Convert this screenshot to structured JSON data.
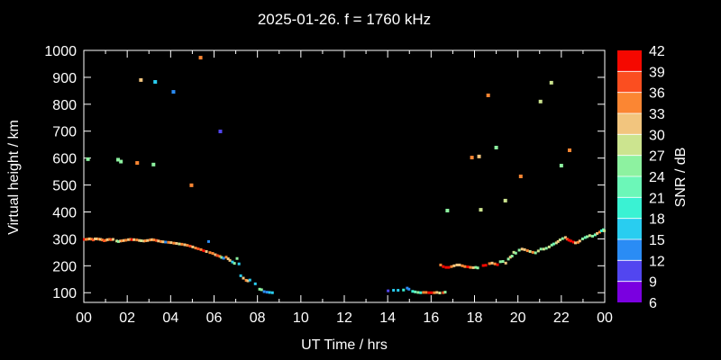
{
  "chart_data": {
    "type": "scatter",
    "title": "2025-01-26. f = 1760 kHz",
    "xlabel": "UT Time / hrs",
    "ylabel": "Virtual height / km",
    "xlim": [
      0,
      24
    ],
    "ylim": [
      64,
      1000
    ],
    "grid": false,
    "x_major_ticks": [
      0,
      2,
      4,
      6,
      8,
      10,
      12,
      14,
      16,
      18,
      20,
      22,
      24
    ],
    "x_tick_labels": [
      "00",
      "02",
      "04",
      "06",
      "08",
      "10",
      "12",
      "14",
      "16",
      "18",
      "20",
      "22",
      "00"
    ],
    "x_minor_ticks": [
      1,
      3,
      5,
      7,
      9,
      11,
      13,
      15,
      17,
      19,
      21,
      23
    ],
    "y_major_ticks": [
      100,
      200,
      300,
      400,
      500,
      600,
      700,
      800,
      900,
      1000
    ],
    "colorbar": {
      "label": "SNR / dB",
      "min": 6,
      "max": 42,
      "step": 3,
      "tick_labels": [
        "42",
        "39",
        "36",
        "33",
        "30",
        "27",
        "24",
        "21",
        "18",
        "15",
        "12",
        "9",
        "6"
      ],
      "colors_bottom_to_top": [
        "#7a00e0",
        "#5246f0",
        "#2a8cf5",
        "#29cdf0",
        "#3af2d3",
        "#6cf7b8",
        "#8df2a0",
        "#cce48f",
        "#f2c57e",
        "#fb8633",
        "#fb4e20",
        "#f50800"
      ]
    },
    "series": [
      {
        "name": "echo-trace",
        "marker_size": 3,
        "points_t_h_snr": [
          [
            0.02,
            298,
            40
          ],
          [
            0.1,
            298,
            34
          ],
          [
            0.19,
            299,
            34
          ],
          [
            0.27,
            300,
            31
          ],
          [
            0.35,
            299,
            34
          ],
          [
            0.44,
            296,
            37
          ],
          [
            0.52,
            300,
            31
          ],
          [
            0.6,
            300,
            31
          ],
          [
            0.69,
            299,
            34
          ],
          [
            0.77,
            298,
            31
          ],
          [
            0.85,
            296,
            34
          ],
          [
            0.94,
            293,
            37
          ],
          [
            1.02,
            295,
            34
          ],
          [
            1.1,
            297,
            31
          ],
          [
            1.19,
            298,
            34
          ],
          [
            1.27,
            297,
            37
          ],
          [
            1.35,
            298,
            31
          ],
          [
            1.52,
            292,
            28
          ],
          [
            1.6,
            290,
            25
          ],
          [
            1.69,
            292,
            31
          ],
          [
            1.77,
            293,
            34
          ],
          [
            1.85,
            294,
            31
          ],
          [
            1.94,
            295,
            34
          ],
          [
            2.06,
            297,
            31
          ],
          [
            2.15,
            298,
            34
          ],
          [
            2.23,
            297,
            40
          ],
          [
            2.31,
            297,
            31
          ],
          [
            2.44,
            296,
            34
          ],
          [
            2.56,
            294,
            31
          ],
          [
            2.65,
            293,
            28
          ],
          [
            2.77,
            292,
            31
          ],
          [
            2.85,
            293,
            34
          ],
          [
            2.94,
            294,
            31
          ],
          [
            3.06,
            296,
            34
          ],
          [
            3.15,
            297,
            31
          ],
          [
            3.23,
            296,
            34
          ],
          [
            3.35,
            294,
            37
          ],
          [
            3.44,
            292,
            31
          ],
          [
            3.56,
            290,
            34
          ],
          [
            3.65,
            289,
            31
          ],
          [
            3.77,
            288,
            13
          ],
          [
            3.9,
            287,
            34
          ],
          [
            4.02,
            286,
            31
          ],
          [
            4.15,
            284,
            34
          ],
          [
            4.27,
            283,
            31
          ],
          [
            4.4,
            281,
            28
          ],
          [
            4.52,
            280,
            34
          ],
          [
            4.65,
            278,
            31
          ],
          [
            4.77,
            276,
            34
          ],
          [
            4.9,
            273,
            37
          ],
          [
            5.02,
            270,
            31
          ],
          [
            5.15,
            266,
            34
          ],
          [
            5.27,
            263,
            37
          ],
          [
            5.4,
            260,
            34
          ],
          [
            5.52,
            256,
            40
          ],
          [
            5.65,
            253,
            31
          ],
          [
            5.75,
            290,
            13
          ],
          [
            5.81,
            249,
            34
          ],
          [
            5.94,
            246,
            34
          ],
          [
            6.06,
            241,
            31
          ],
          [
            6.15,
            238,
            37
          ],
          [
            6.27,
            235,
            34
          ],
          [
            6.35,
            231,
            25
          ],
          [
            6.44,
            228,
            13
          ],
          [
            6.56,
            232,
            34
          ],
          [
            6.65,
            226,
            31
          ],
          [
            6.73,
            220,
            31
          ],
          [
            6.85,
            214,
            16
          ],
          [
            6.94,
            209,
            25
          ],
          [
            7.06,
            227,
            25
          ],
          [
            7.15,
            207,
            16
          ],
          [
            7.23,
            163,
            16
          ],
          [
            7.35,
            154,
            31
          ],
          [
            7.48,
            146,
            34
          ],
          [
            7.56,
            144,
            31
          ],
          [
            7.65,
            147,
            16
          ],
          [
            7.9,
            133,
            16
          ],
          [
            8.1,
            113,
            25
          ],
          [
            8.19,
            111,
            25
          ],
          [
            8.31,
            104,
            13
          ],
          [
            8.44,
            102,
            13
          ],
          [
            8.56,
            101,
            16
          ],
          [
            8.69,
            100,
            16
          ],
          [
            14.02,
            107,
            10
          ],
          [
            14.27,
            109,
            16
          ],
          [
            14.48,
            109,
            16
          ],
          [
            14.73,
            110,
            19
          ],
          [
            14.9,
            117,
            13
          ],
          [
            14.98,
            113,
            13
          ],
          [
            15.15,
            105,
            19
          ],
          [
            15.27,
            103,
            22
          ],
          [
            15.4,
            101,
            25
          ],
          [
            15.52,
            100,
            19
          ],
          [
            15.65,
            101,
            34
          ],
          [
            15.77,
            101,
            34
          ],
          [
            15.9,
            100,
            40
          ],
          [
            16.02,
            100,
            40
          ],
          [
            16.15,
            100,
            34
          ],
          [
            16.27,
            101,
            31
          ],
          [
            16.4,
            99,
            28
          ],
          [
            16.56,
            100,
            37
          ],
          [
            16.65,
            102,
            25
          ],
          [
            16.44,
            203,
            34
          ],
          [
            16.56,
            197,
            40
          ],
          [
            16.69,
            194,
            40
          ],
          [
            16.81,
            194,
            40
          ],
          [
            16.94,
            197,
            34
          ],
          [
            17.06,
            200,
            31
          ],
          [
            17.19,
            203,
            31
          ],
          [
            17.31,
            203,
            31
          ],
          [
            17.44,
            200,
            34
          ],
          [
            17.56,
            197,
            34
          ],
          [
            17.69,
            196,
            40
          ],
          [
            17.81,
            194,
            34
          ],
          [
            17.94,
            193,
            31
          ],
          [
            18.06,
            194,
            25
          ],
          [
            18.15,
            192,
            25
          ],
          [
            18.4,
            201,
            40
          ],
          [
            18.52,
            202,
            40
          ],
          [
            18.69,
            208,
            34
          ],
          [
            18.81,
            210,
            31
          ],
          [
            18.94,
            207,
            34
          ],
          [
            19.06,
            204,
            40
          ],
          [
            19.19,
            215,
            25
          ],
          [
            19.31,
            216,
            25
          ],
          [
            19.44,
            210,
            31
          ],
          [
            19.56,
            225,
            25
          ],
          [
            19.65,
            232,
            31
          ],
          [
            19.73,
            236,
            25
          ],
          [
            19.81,
            250,
            28
          ],
          [
            19.9,
            247,
            25
          ],
          [
            20.06,
            258,
            25
          ],
          [
            20.19,
            262,
            31
          ],
          [
            20.31,
            260,
            31
          ],
          [
            20.44,
            256,
            34
          ],
          [
            20.56,
            253,
            28
          ],
          [
            20.69,
            250,
            34
          ],
          [
            20.81,
            248,
            25
          ],
          [
            20.94,
            255,
            28
          ],
          [
            21.06,
            262,
            25
          ],
          [
            21.19,
            262,
            28
          ],
          [
            21.31,
            265,
            25
          ],
          [
            21.44,
            270,
            28
          ],
          [
            21.56,
            277,
            25
          ],
          [
            21.65,
            281,
            22
          ],
          [
            21.77,
            285,
            28
          ],
          [
            21.85,
            290,
            31
          ],
          [
            21.94,
            296,
            28
          ],
          [
            22.06,
            301,
            25
          ],
          [
            22.19,
            305,
            31
          ],
          [
            22.27,
            299,
            37
          ],
          [
            22.35,
            295,
            40
          ],
          [
            22.44,
            292,
            40
          ],
          [
            22.56,
            288,
            40
          ],
          [
            22.65,
            285,
            31
          ],
          [
            22.77,
            287,
            34
          ],
          [
            22.85,
            292,
            31
          ],
          [
            22.98,
            300,
            25
          ],
          [
            23.1,
            305,
            22
          ],
          [
            23.19,
            308,
            25
          ],
          [
            23.31,
            312,
            28
          ],
          [
            23.44,
            310,
            25
          ],
          [
            23.56,
            315,
            22
          ],
          [
            23.65,
            320,
            31
          ],
          [
            23.77,
            325,
            34
          ],
          [
            23.85,
            330,
            19
          ],
          [
            23.94,
            334,
            22
          ],
          [
            23.98,
            330,
            28
          ]
        ]
      },
      {
        "name": "spread-echoes",
        "marker_size": 4,
        "points_t_h_snr": [
          [
            0.19,
            596,
            25
          ],
          [
            1.58,
            594,
            25
          ],
          [
            1.71,
            587,
            25
          ],
          [
            2.46,
            582,
            34
          ],
          [
            2.63,
            890,
            31
          ],
          [
            3.21,
            576,
            25
          ],
          [
            3.29,
            883,
            16
          ],
          [
            4.13,
            846,
            13
          ],
          [
            4.96,
            499,
            34
          ],
          [
            5.38,
            973,
            34
          ],
          [
            6.29,
            699,
            10
          ],
          [
            16.75,
            405,
            25
          ],
          [
            17.88,
            602,
            34
          ],
          [
            18.21,
            606,
            31
          ],
          [
            18.29,
            408,
            28
          ],
          [
            18.63,
            833,
            34
          ],
          [
            19.0,
            639,
            25
          ],
          [
            19.42,
            442,
            28
          ],
          [
            20.13,
            532,
            34
          ],
          [
            21.04,
            810,
            28
          ],
          [
            21.54,
            880,
            28
          ],
          [
            22.0,
            572,
            25
          ],
          [
            22.38,
            629,
            34
          ]
        ]
      }
    ]
  }
}
